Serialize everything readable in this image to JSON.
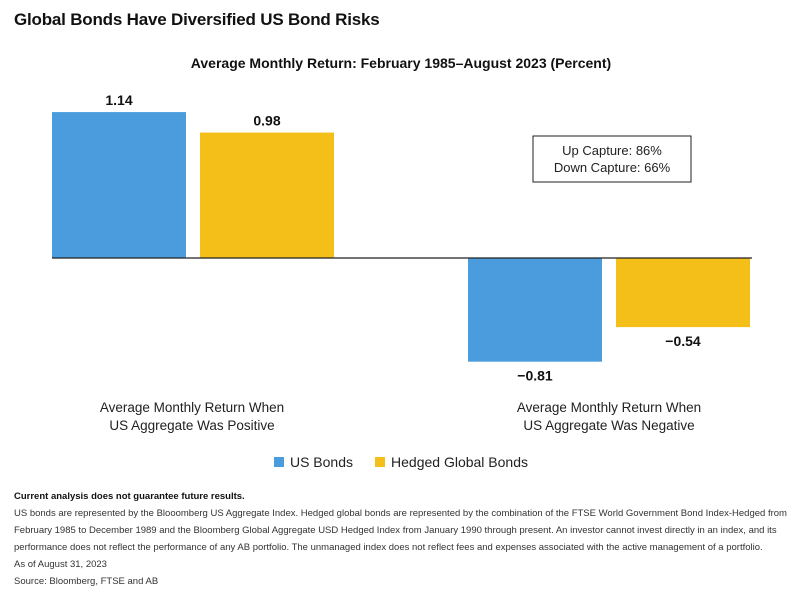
{
  "page_title": "Global Bonds Have Diversified US Bond Risks",
  "chart_data": {
    "type": "bar",
    "title": "Average Monthly Return: February 1985–August 2023 (Percent)",
    "categories": [
      "Average Monthly Return When\nUS Aggregate Was Positive",
      "Average Monthly Return When\nUS Aggregate Was Negative"
    ],
    "series": [
      {
        "name": "US Bonds",
        "color": "#4a9cdc",
        "values": [
          1.14,
          -0.81
        ],
        "labels": [
          "1.14",
          "−0.81"
        ]
      },
      {
        "name": "Hedged Global Bonds",
        "color": "#f5bf1a",
        "values": [
          0.98,
          -0.54
        ],
        "labels": [
          "0.98",
          "−0.54"
        ]
      }
    ],
    "ylim": [
      -0.81,
      1.14
    ],
    "legend_position": "bottom",
    "grid": false,
    "annotation": [
      "Up Capture: 86%",
      "Down Capture: 66%"
    ]
  },
  "notes": {
    "disclaimer": "Current analysis does not guarantee future results.",
    "description": "US bonds are represented by the Blooomberg US Aggregate Index. Hedged global bonds are represented by the combination of the FTSE World Government Bond Index-Hedged from February 1985 to December 1989 and the Bloomberg Global Aggregate USD Hedged Index from January 1990 through present. An investor cannot invest directly in an index, and its performance does not reflect the performance of any AB portfolio. The unmanaged index does not reflect fees and expenses associated with the active management of a portfolio.",
    "as_of": "As of August 31, 2023",
    "source": "Source: Bloomberg, FTSE and AB"
  }
}
